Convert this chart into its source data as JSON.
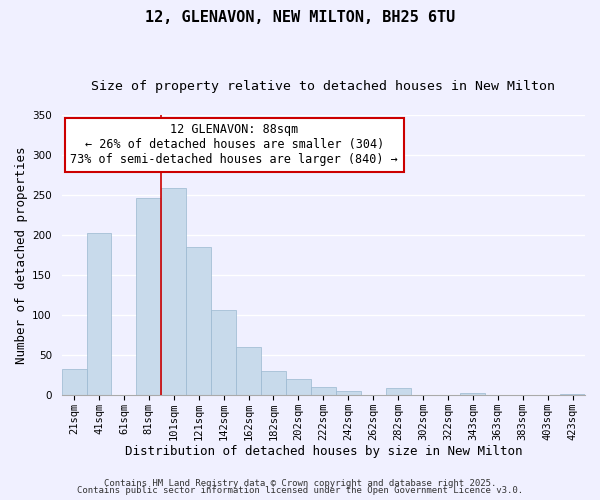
{
  "title": "12, GLENAVON, NEW MILTON, BH25 6TU",
  "subtitle": "Size of property relative to detached houses in New Milton",
  "xlabel": "Distribution of detached houses by size in New Milton",
  "ylabel": "Number of detached properties",
  "bar_color": "#c8daeb",
  "bar_edge_color": "#9ab8d0",
  "background_color": "#f0f0ff",
  "grid_color": "#ffffff",
  "categories": [
    "21sqm",
    "41sqm",
    "61sqm",
    "81sqm",
    "101sqm",
    "121sqm",
    "142sqm",
    "162sqm",
    "182sqm",
    "202sqm",
    "222sqm",
    "242sqm",
    "262sqm",
    "282sqm",
    "302sqm",
    "322sqm",
    "343sqm",
    "363sqm",
    "383sqm",
    "403sqm",
    "423sqm"
  ],
  "values": [
    33,
    203,
    0,
    246,
    259,
    185,
    106,
    60,
    30,
    20,
    10,
    5,
    0,
    9,
    0,
    0,
    3,
    0,
    0,
    0,
    1
  ],
  "ylim": [
    0,
    350
  ],
  "yticks": [
    0,
    50,
    100,
    150,
    200,
    250,
    300,
    350
  ],
  "vline_color": "#cc0000",
  "annotation_title": "12 GLENAVON: 88sqm",
  "annotation_line1": "← 26% of detached houses are smaller (304)",
  "annotation_line2": "73% of semi-detached houses are larger (840) →",
  "annotation_box_color": "#ffffff",
  "annotation_box_edge": "#cc0000",
  "footer1": "Contains HM Land Registry data © Crown copyright and database right 2025.",
  "footer2": "Contains public sector information licensed under the Open Government Licence v3.0.",
  "title_fontsize": 11,
  "subtitle_fontsize": 9.5,
  "axis_label_fontsize": 9,
  "tick_fontsize": 7.5,
  "annotation_fontsize": 8.5,
  "footer_fontsize": 6.5
}
